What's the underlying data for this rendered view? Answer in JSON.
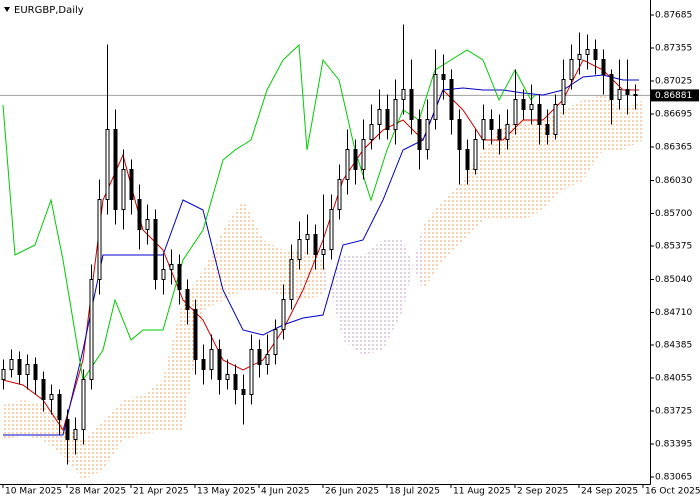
{
  "chart_data": {
    "type": "candlestick",
    "title": "EURGBP,Daily",
    "xlim": [
      -0.75,
      161.75
    ],
    "ylim": [
      0.82995,
      0.87835
    ],
    "xticks": [
      {
        "value": 0,
        "label": "10 Mar 2025"
      },
      {
        "value": 16,
        "label": "28 Mar 2025"
      },
      {
        "value": 32,
        "label": "21 Apr 2025"
      },
      {
        "value": 48,
        "label": "13 May 2025"
      },
      {
        "value": 64,
        "label": "4 Jun 2025"
      },
      {
        "value": 80,
        "label": "26 Jun 2025"
      },
      {
        "value": 96,
        "label": "18 Jul 2025"
      },
      {
        "value": 112,
        "label": "11 Aug 2025"
      },
      {
        "value": 128,
        "label": "2 Sep 2025"
      },
      {
        "value": 144,
        "label": "24 Sep 2025"
      },
      {
        "value": 160,
        "label": "16 Oct 2025"
      }
    ],
    "yticks": [
      0.87685,
      0.87355,
      0.87025,
      0.86695,
      0.86365,
      {
        "value": 0.8603,
        "label": "0.86030"
      },
      {
        "value": 0.857,
        "label": "0.85700"
      },
      0.85375,
      {
        "value": 0.8504,
        "label": "0.85040"
      },
      {
        "value": 0.8471,
        "label": "0.84710"
      },
      0.84385,
      0.84055,
      0.83725,
      0.83395,
      0.83065
    ],
    "current_price": 0.86881,
    "up_color": "#ffffff",
    "down_color": "#000000",
    "x": [
      0,
      2,
      4,
      6,
      8,
      10,
      12,
      14,
      16,
      18,
      20,
      22,
      24,
      26,
      28,
      30,
      32,
      34,
      36,
      38,
      40,
      42,
      44,
      46,
      48,
      50,
      52,
      54,
      56,
      58,
      60,
      62,
      64,
      66,
      68,
      70,
      72,
      74,
      76,
      78,
      80,
      82,
      84,
      86,
      88,
      90,
      92,
      94,
      96,
      98,
      100,
      102,
      104,
      106,
      108,
      110,
      112,
      114,
      116,
      118,
      120,
      122,
      124,
      126,
      128,
      130,
      132,
      134,
      136,
      138,
      140,
      142,
      144,
      146,
      148,
      150,
      152,
      154,
      156,
      158
    ],
    "ohlc": [
      [
        0.8404,
        0.8424,
        0.8394,
        0.8414
      ],
      [
        0.8414,
        0.8434,
        0.8406,
        0.8424
      ],
      [
        0.8424,
        0.8432,
        0.8399,
        0.8409
      ],
      [
        0.8409,
        0.8429,
        0.8394,
        0.8419
      ],
      [
        0.8419,
        0.8426,
        0.8389,
        0.8404
      ],
      [
        0.8404,
        0.8412,
        0.8372,
        0.8384
      ],
      [
        0.8384,
        0.8399,
        0.8369,
        0.8389
      ],
      [
        0.8389,
        0.8394,
        0.8349,
        0.8364
      ],
      [
        0.8364,
        0.8374,
        0.8319,
        0.8344
      ],
      [
        0.8344,
        0.8366,
        0.8329,
        0.8354
      ],
      [
        0.8354,
        0.8414,
        0.8339,
        0.8404
      ],
      [
        0.8404,
        0.8519,
        0.8394,
        0.8504
      ],
      [
        0.8504,
        0.8604,
        0.8489,
        0.8584
      ],
      [
        0.8584,
        0.8739,
        0.8569,
        0.8654
      ],
      [
        0.8654,
        0.8674,
        0.8559,
        0.8574
      ],
      [
        0.8574,
        0.8634,
        0.8554,
        0.8614
      ],
      [
        0.8614,
        0.8624,
        0.8569,
        0.8584
      ],
      [
        0.8584,
        0.8599,
        0.8534,
        0.8554
      ],
      [
        0.8554,
        0.8579,
        0.8539,
        0.8564
      ],
      [
        0.8564,
        0.8574,
        0.8494,
        0.8504
      ],
      [
        0.8504,
        0.8529,
        0.8489,
        0.8514
      ],
      [
        0.8514,
        0.8534,
        0.8499,
        0.8519
      ],
      [
        0.8519,
        0.8529,
        0.8479,
        0.8494
      ],
      [
        0.8494,
        0.8504,
        0.8459,
        0.8474
      ],
      [
        0.8474,
        0.8484,
        0.8409,
        0.8424
      ],
      [
        0.8424,
        0.8439,
        0.8399,
        0.8414
      ],
      [
        0.8414,
        0.8449,
        0.8404,
        0.8434
      ],
      [
        0.8434,
        0.8444,
        0.8389,
        0.8404
      ],
      [
        0.8404,
        0.8424,
        0.8394,
        0.8409
      ],
      [
        0.8409,
        0.8419,
        0.8379,
        0.8394
      ],
      [
        0.8394,
        0.8409,
        0.8359,
        0.8389
      ],
      [
        0.8389,
        0.8449,
        0.8379,
        0.8434
      ],
      [
        0.8434,
        0.8444,
        0.8406,
        0.8419
      ],
      [
        0.8419,
        0.8449,
        0.8409,
        0.8429
      ],
      [
        0.8429,
        0.8464,
        0.8419,
        0.8454
      ],
      [
        0.8454,
        0.8499,
        0.8444,
        0.8484
      ],
      [
        0.8484,
        0.8539,
        0.8474,
        0.8524
      ],
      [
        0.8524,
        0.8562,
        0.8514,
        0.8544
      ],
      [
        0.8544,
        0.8569,
        0.8529,
        0.8549
      ],
      [
        0.8549,
        0.8559,
        0.8514,
        0.8529
      ],
      [
        0.8529,
        0.8589,
        0.8514,
        0.8534
      ],
      [
        0.8534,
        0.8589,
        0.8524,
        0.8574
      ],
      [
        0.8574,
        0.8619,
        0.8564,
        0.8604
      ],
      [
        0.8604,
        0.8654,
        0.8589,
        0.8634
      ],
      [
        0.8634,
        0.8644,
        0.8599,
        0.8614
      ],
      [
        0.8614,
        0.8664,
        0.8604,
        0.8644
      ],
      [
        0.8644,
        0.8679,
        0.8634,
        0.8659
      ],
      [
        0.8659,
        0.8694,
        0.8644,
        0.8674
      ],
      [
        0.8674,
        0.8689,
        0.8644,
        0.8654
      ],
      [
        0.8654,
        0.8704,
        0.8639,
        0.8684
      ],
      [
        0.8684,
        0.8759,
        0.8669,
        0.8694
      ],
      [
        0.8694,
        0.8724,
        0.8649,
        0.8664
      ],
      [
        0.8664,
        0.8674,
        0.8614,
        0.8634
      ],
      [
        0.8634,
        0.8684,
        0.8624,
        0.8664
      ],
      [
        0.8664,
        0.8734,
        0.8654,
        0.8709
      ],
      [
        0.8709,
        0.8729,
        0.8684,
        0.8704
      ],
      [
        0.8704,
        0.8714,
        0.8649,
        0.8664
      ],
      [
        0.8664,
        0.8674,
        0.8599,
        0.8634
      ],
      [
        0.8634,
        0.8644,
        0.8599,
        0.8614
      ],
      [
        0.8614,
        0.8654,
        0.8609,
        0.8644
      ],
      [
        0.8644,
        0.8679,
        0.8634,
        0.8664
      ],
      [
        0.8664,
        0.8674,
        0.8639,
        0.8654
      ],
      [
        0.8654,
        0.8669,
        0.8629,
        0.8644
      ],
      [
        0.8644,
        0.8674,
        0.8634,
        0.8659
      ],
      [
        0.8659,
        0.8714,
        0.8649,
        0.8684
      ],
      [
        0.8684,
        0.8694,
        0.8664,
        0.8674
      ],
      [
        0.8674,
        0.8699,
        0.8659,
        0.8679
      ],
      [
        0.8679,
        0.8689,
        0.8639,
        0.8659
      ],
      [
        0.8659,
        0.8674,
        0.8639,
        0.8649
      ],
      [
        0.8649,
        0.8689,
        0.8644,
        0.8679
      ],
      [
        0.8679,
        0.8724,
        0.8669,
        0.8704
      ],
      [
        0.8704,
        0.8739,
        0.8694,
        0.8724
      ],
      [
        0.8724,
        0.8751,
        0.8709,
        0.8729
      ],
      [
        0.8729,
        0.8749,
        0.8714,
        0.8734
      ],
      [
        0.8734,
        0.8744,
        0.8709,
        0.8724
      ],
      [
        0.8724,
        0.8734,
        0.8689,
        0.8709
      ],
      [
        0.8709,
        0.8714,
        0.8659,
        0.8684
      ],
      [
        0.8684,
        0.8724,
        0.8674,
        0.8694
      ],
      [
        0.8694,
        0.8724,
        0.8669,
        0.8689
      ],
      [
        0.8689,
        0.8699,
        0.8674,
        0.86881
      ]
    ],
    "lines": [
      {
        "color": "#cc0000",
        "x": [
          0,
          5,
          10,
          15,
          20,
          25,
          30,
          35,
          40,
          45,
          50,
          55,
          60,
          65,
          70,
          75,
          80,
          85,
          90,
          95,
          100,
          105,
          110,
          115,
          120,
          125,
          130,
          135,
          140,
          145,
          150,
          155,
          159
        ],
        "values": [
          0.84035,
          0.83985,
          0.83835,
          0.83535,
          0.84235,
          0.85835,
          0.86285,
          0.85535,
          0.85335,
          0.84835,
          0.84635,
          0.84235,
          0.84135,
          0.84235,
          0.84535,
          0.84935,
          0.85435,
          0.86035,
          0.86335,
          0.86535,
          0.86635,
          0.86435,
          0.86935,
          0.86735,
          0.86435,
          0.86435,
          0.86635,
          0.86635,
          0.86835,
          0.87235,
          0.87135,
          0.86935,
          0.86935
        ]
      },
      {
        "color": "#0000cc",
        "x": [
          0,
          5,
          10,
          15,
          20,
          25,
          30,
          35,
          40,
          45,
          50,
          55,
          60,
          65,
          70,
          75,
          80,
          85,
          90,
          95,
          100,
          105,
          110,
          115,
          120,
          125,
          130,
          135,
          140,
          145,
          150,
          155,
          159
        ],
        "values": [
          0.83485,
          0.83485,
          0.83485,
          0.83485,
          0.84335,
          0.85285,
          0.85285,
          0.85285,
          0.85285,
          0.85835,
          0.85735,
          0.84935,
          0.84535,
          0.84485,
          0.84585,
          0.84655,
          0.84685,
          0.85385,
          0.85435,
          0.85835,
          0.86335,
          0.86435,
          0.86935,
          0.86955,
          0.86935,
          0.86935,
          0.86905,
          0.86885,
          0.86935,
          0.87065,
          0.87085,
          0.87035,
          0.87035
        ]
      },
      {
        "color": "#00cc00",
        "x": [
          0,
          3,
          8,
          12,
          15,
          20,
          25,
          28,
          32,
          35,
          40,
          45,
          50,
          55,
          58,
          62,
          66,
          70,
          74,
          76,
          80,
          84,
          88,
          92,
          96,
          100,
          104,
          108,
          112,
          116,
          120,
          124,
          128,
          132,
          133
        ],
        "values": [
          0.86785,
          0.85285,
          0.85385,
          0.85835,
          0.85235,
          0.84035,
          0.84335,
          0.84835,
          0.84435,
          0.84535,
          0.84535,
          0.85235,
          0.85535,
          0.86235,
          0.86335,
          0.86435,
          0.86935,
          0.87235,
          0.87385,
          0.86335,
          0.87235,
          0.87035,
          0.86335,
          0.85835,
          0.86335,
          0.86735,
          0.86635,
          0.87135,
          0.87235,
          0.87335,
          0.87235,
          0.86835,
          0.87135,
          0.86835,
          0.86885
        ]
      }
    ],
    "cloud": {
      "up_color": "#f4a460",
      "down_color": "#c8a2c8",
      "x": [
        0,
        5,
        10,
        15,
        20,
        25,
        30,
        35,
        40,
        45,
        50,
        55,
        60,
        65,
        70,
        75,
        80,
        85,
        90,
        95,
        100,
        105,
        110,
        115,
        120,
        125,
        130,
        135,
        140,
        145,
        150,
        155,
        160
      ],
      "span_a": [
        0.83785,
        0.83835,
        0.83785,
        0.83635,
        0.83435,
        0.83635,
        0.83835,
        0.83885,
        0.84035,
        0.84835,
        0.85135,
        0.85535,
        0.85835,
        0.85435,
        0.85335,
        0.85335,
        0.85235,
        0.84435,
        0.84285,
        0.84335,
        0.84735,
        0.85585,
        0.85835,
        0.86035,
        0.86335,
        0.86585,
        0.86635,
        0.86635,
        0.86735,
        0.86835,
        0.86885,
        0.86735,
        0.86835
      ],
      "span_b": [
        0.83435,
        0.83485,
        0.83435,
        0.83285,
        0.83035,
        0.83135,
        0.83435,
        0.83485,
        0.83535,
        0.83535,
        0.84735,
        0.84835,
        0.84935,
        0.84935,
        0.84885,
        0.84835,
        0.84885,
        0.85285,
        0.85285,
        0.85435,
        0.85435,
        0.84935,
        0.85235,
        0.85435,
        0.85635,
        0.85635,
        0.85635,
        0.85735,
        0.85935,
        0.86035,
        0.86335,
        0.86335,
        0.86435
      ]
    }
  }
}
